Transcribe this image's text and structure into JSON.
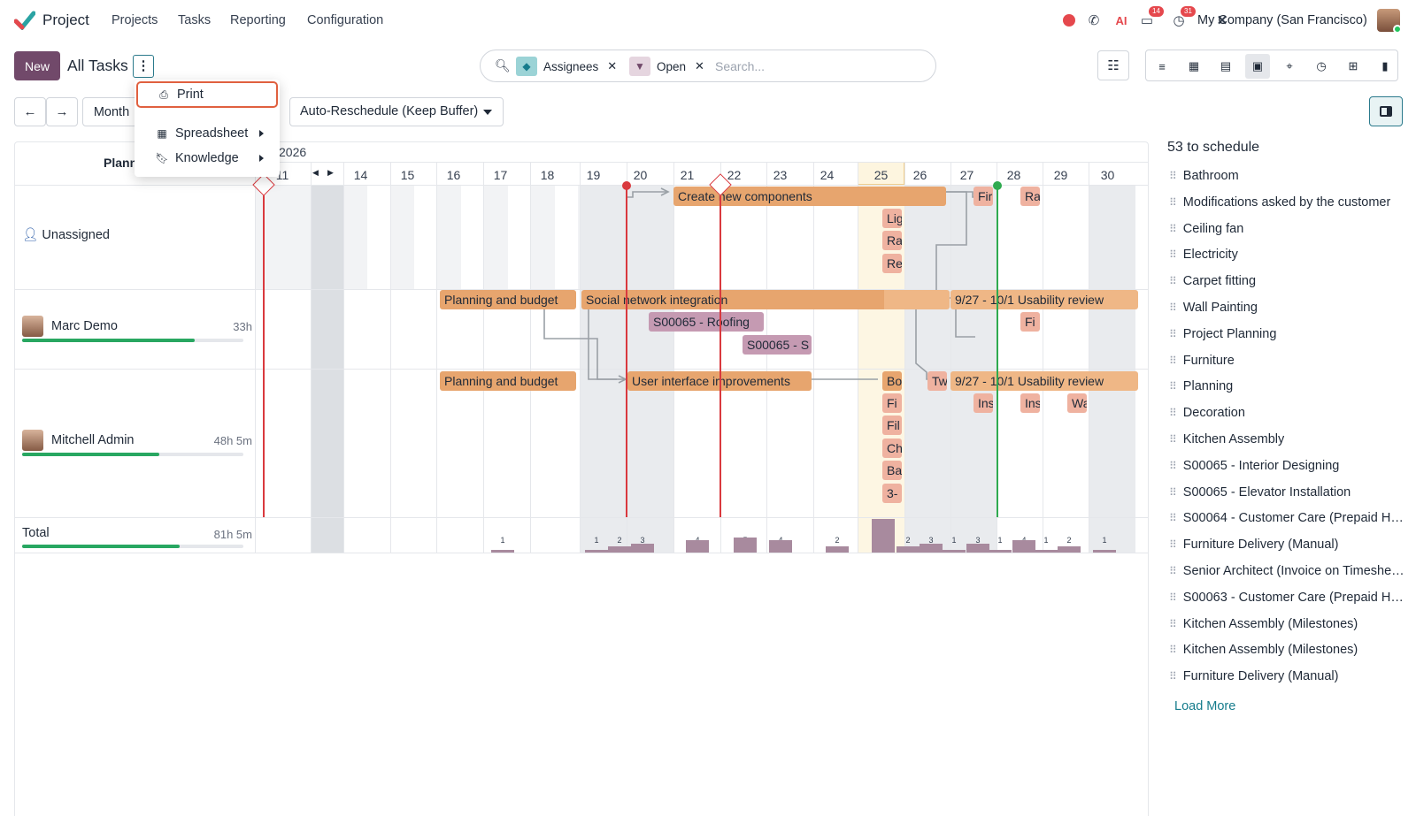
{
  "app": {
    "name": "Project"
  },
  "nav": [
    "Projects",
    "Tasks",
    "Reporting",
    "Configuration"
  ],
  "systray": {
    "chat_badge": "14",
    "activity_badge": "31",
    "company": "My Company (San Francisco)"
  },
  "control": {
    "new_label": "New",
    "title": "All Tasks"
  },
  "search": {
    "facets": [
      {
        "label": "Assignees",
        "icon": "layers-icon"
      },
      {
        "label": "Open",
        "icon": "filter-icon"
      }
    ],
    "placeholder": "Search..."
  },
  "toolbar": {
    "month_label": "Month",
    "reschedule_label": "Auto-Reschedule (Keep Buffer)"
  },
  "menu": {
    "items": [
      "Print",
      "Spreadsheet",
      "Knowledge"
    ]
  },
  "gantt": {
    "year": "2026",
    "header_left": "Plann",
    "days": [
      "11",
      "14",
      "15",
      "16",
      "17",
      "18",
      "19",
      "20",
      "21",
      "22",
      "23",
      "24",
      "25",
      "26",
      "27",
      "28",
      "29",
      "30"
    ],
    "today": "25",
    "rows": [
      {
        "name": "Unassigned",
        "hours": ""
      },
      {
        "name": "Marc Demo",
        "hours": "33h",
        "progress": 0.78
      },
      {
        "name": "Mitchell Admin",
        "hours": "48h 5m",
        "progress": 0.62
      },
      {
        "name": "Total",
        "hours": "81h 5m",
        "progress": 0.71
      }
    ],
    "bars": {
      "b1": "Create new components",
      "b2": "Planning and budget",
      "b3": "Social network integration",
      "b4": "9/27 - 10/1 Usability review",
      "b5": "S00065 - Roofing",
      "b6": "S00065 - S",
      "b7": "Planning and budget",
      "b8": "User interface improvements",
      "b9": "9/27 - 10/1 Usability review",
      "s1": "Fir",
      "s2": "Ra",
      "s3": "Lig",
      "s4": "Ra",
      "s5": "Re",
      "s6": "Fi",
      "s7": "Bo",
      "s8": "Tw",
      "s9": "Ins",
      "s10": "Ins",
      "s11": "Wa",
      "s12": "Fi",
      "s13": "Fil",
      "s14": "Ch",
      "s15": "Ba",
      "s16": "3-"
    },
    "totals": [
      "1",
      "1",
      "2",
      "3",
      "4",
      "5",
      "4",
      "2",
      "11",
      "2",
      "3",
      "1",
      "3",
      "1",
      "4",
      "1",
      "2",
      "1"
    ]
  },
  "sidepanel": {
    "title": "53 to schedule",
    "items": [
      "Bathroom",
      "Modifications asked by the customer",
      "Ceiling fan",
      "Electricity",
      "Carpet fitting",
      "Wall Painting",
      "Project Planning",
      "Furniture",
      "Planning",
      "Decoration",
      "Kitchen Assembly",
      "S00065 - Interior Designing",
      "S00065 - Elevator Installation",
      "S00064 - Customer Care (Prepaid Hours)",
      "Furniture Delivery (Manual)",
      "Senior Architect (Invoice on Timesheets)",
      "S00063 - Customer Care (Prepaid Hours)",
      "Kitchen Assembly (Milestones)",
      "Kitchen Assembly (Milestones)",
      "Furniture Delivery (Manual)"
    ],
    "load_more": "Load More"
  },
  "colors": {
    "brand": "#71496a",
    "accent": "#167c8c",
    "task_orange": "#e7a56e",
    "today_line": "#2faa4f",
    "deadline_red": "#d9393e"
  }
}
